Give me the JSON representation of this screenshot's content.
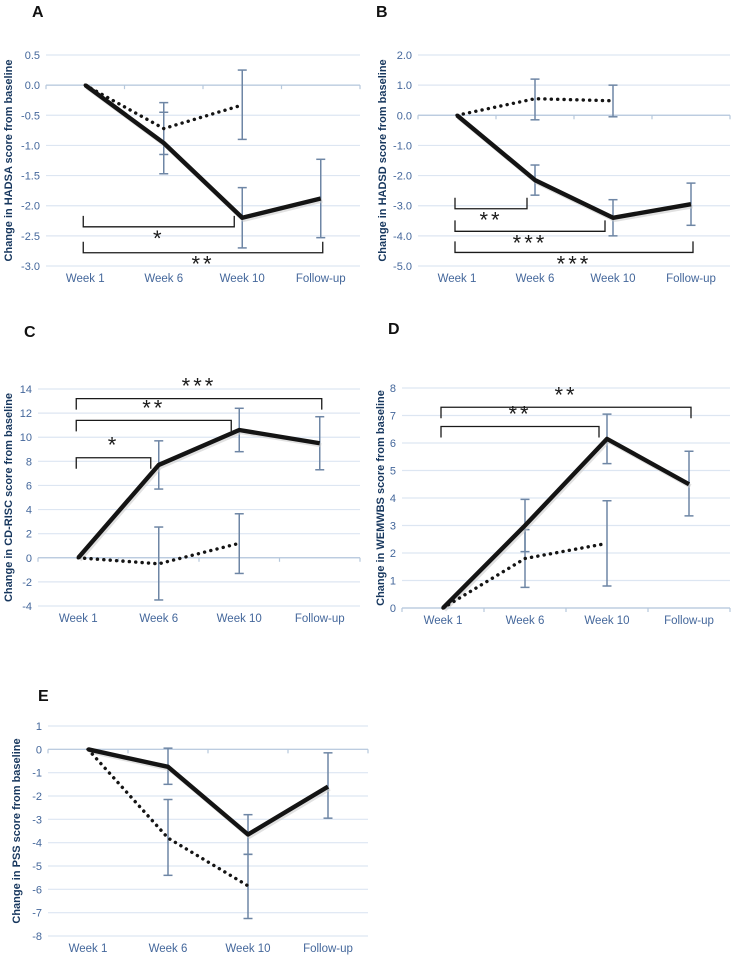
{
  "colors": {
    "line": "#141414",
    "line_shadow": "#c9c9c9",
    "error_bar": "#6e86a5",
    "grid": "#dde6f2",
    "axis": "#b6c8dc",
    "tick_label": "#44679b",
    "axis_title": "#17375e",
    "stars": "#1a1a1a",
    "background": "#ffffff"
  },
  "chart_data": [
    {
      "type": "line",
      "panel_label": "A",
      "ylabel": "Change in HADSA score from baseline",
      "categories": [
        "Week 1",
        "Week 6",
        "Week 10",
        "Follow-up"
      ],
      "ylim": [
        -3.0,
        0.5
      ],
      "grid": true,
      "legend": "none",
      "yticks": {
        "values": [
          0.5,
          0,
          -0.5,
          -1,
          -1.5,
          -2,
          -2.5,
          -3
        ],
        "labels": [
          "0.5",
          "0.0",
          "-0.5",
          "-1.0",
          "-1.5",
          "-2.0",
          "-2.5",
          "-3.0"
        ]
      },
      "series": [
        {
          "name": "solid-line",
          "dash": "solid",
          "values": [
            0,
            -0.96,
            -2.2,
            -1.88
          ],
          "err_hi": [
            null,
            -0.45,
            -1.7,
            -1.23
          ],
          "err_lo": [
            null,
            -1.47,
            -2.7,
            -2.53
          ]
        },
        {
          "name": "dotted-line",
          "dash": "dotted",
          "values": [
            0,
            -0.72,
            -0.33,
            null
          ],
          "err_hi": [
            null,
            -0.29,
            0.25,
            null
          ],
          "err_lo": [
            null,
            -1.15,
            -0.9,
            null
          ]
        }
      ],
      "brackets": [
        {
          "from": 0,
          "to": 2,
          "at": -2.35,
          "stars": "*",
          "side": "bottom"
        },
        {
          "from": 0,
          "to": 3,
          "at": -2.78,
          "stars": "**",
          "side": "bottom"
        }
      ]
    },
    {
      "type": "line",
      "panel_label": "B",
      "ylabel": "Change in HADSD score from baseline",
      "categories": [
        "Week 1",
        "Week 6",
        "Week 10",
        "Follow-up"
      ],
      "ylim": [
        -5.0,
        2.0
      ],
      "grid": true,
      "legend": "none",
      "yticks": {
        "values": [
          2,
          1,
          0,
          -1,
          -2,
          -3,
          -4,
          -5
        ],
        "labels": [
          "2.0",
          "1.0",
          "0.0",
          "-1.0",
          "-2.0",
          "-3.0",
          "-4.0",
          "-5.0"
        ]
      },
      "series": [
        {
          "name": "solid-line",
          "dash": "solid",
          "values": [
            0,
            -2.15,
            -3.4,
            -2.95
          ],
          "err_hi": [
            null,
            -1.65,
            -2.8,
            -2.25
          ],
          "err_lo": [
            null,
            -2.65,
            -4.0,
            -3.65
          ]
        },
        {
          "name": "dotted-line",
          "dash": "dotted",
          "values": [
            0,
            0.55,
            0.48,
            null
          ],
          "err_hi": [
            null,
            1.2,
            1.0,
            null
          ],
          "err_lo": [
            null,
            -0.15,
            -0.05,
            null
          ]
        }
      ],
      "brackets": [
        {
          "from": 0,
          "to": 1,
          "at": -3.1,
          "stars": "**",
          "side": "bottom"
        },
        {
          "from": 0,
          "to": 2,
          "at": -3.85,
          "stars": "***",
          "side": "bottom"
        },
        {
          "from": 0,
          "to": 3,
          "at": -4.55,
          "stars": "***",
          "side": "bottom"
        }
      ]
    },
    {
      "type": "line",
      "panel_label": "C",
      "ylabel": "Change in CD-RISC score from baseline",
      "categories": [
        "Week 1",
        "Week 6",
        "Week 10",
        "Follow-up"
      ],
      "ylim": [
        -4,
        14
      ],
      "grid": true,
      "legend": "none",
      "yticks": {
        "values": [
          14,
          12,
          10,
          8,
          6,
          4,
          2,
          0,
          -2,
          -4
        ],
        "labels": [
          "14",
          "12",
          "10",
          "8",
          "6",
          "4",
          "2",
          "0",
          "-2",
          "-4"
        ]
      },
      "series": [
        {
          "name": "solid-line",
          "dash": "solid",
          "values": [
            0,
            7.7,
            10.6,
            9.5
          ],
          "err_hi": [
            null,
            9.7,
            12.4,
            11.7
          ],
          "err_lo": [
            null,
            5.7,
            8.8,
            7.3
          ]
        },
        {
          "name": "dotted-line",
          "dash": "dotted",
          "values": [
            0,
            -0.5,
            1.2,
            null
          ],
          "err_hi": [
            null,
            2.55,
            3.65,
            null
          ],
          "err_lo": [
            null,
            -3.5,
            -1.3,
            null
          ]
        }
      ],
      "brackets": [
        {
          "from": 0,
          "to": 1,
          "at": 8.3,
          "stars": "*",
          "side": "top"
        },
        {
          "from": 0,
          "to": 2,
          "at": 11.4,
          "stars": "**",
          "side": "top"
        },
        {
          "from": 0,
          "to": 3,
          "at": 13.2,
          "stars": "***",
          "side": "top"
        }
      ]
    },
    {
      "type": "line",
      "panel_label": "D",
      "ylabel": "Change in WEMWBS score from baseline",
      "categories": [
        "Week 1",
        "Week 6",
        "Week 10",
        "Follow-up"
      ],
      "ylim": [
        0,
        8
      ],
      "grid": true,
      "legend": "none",
      "yticks": {
        "values": [
          8,
          7,
          6,
          5,
          4,
          3,
          2,
          1,
          0
        ],
        "labels": [
          "8",
          "7",
          "6",
          "5",
          "4",
          "3",
          "2",
          "1",
          "0"
        ]
      },
      "series": [
        {
          "name": "solid-line",
          "dash": "solid",
          "values": [
            0,
            3.0,
            6.15,
            4.5
          ],
          "err_hi": [
            null,
            3.95,
            7.05,
            5.7
          ],
          "err_lo": [
            null,
            2.05,
            5.25,
            3.35
          ]
        },
        {
          "name": "dotted-line",
          "dash": "dotted",
          "values": [
            0,
            1.8,
            2.35,
            null
          ],
          "err_hi": [
            null,
            2.85,
            3.9,
            null
          ],
          "err_lo": [
            null,
            0.75,
            0.8,
            null
          ]
        }
      ],
      "brackets": [
        {
          "from": 0,
          "to": 2,
          "at": 6.6,
          "stars": "**",
          "side": "top"
        },
        {
          "from": 0,
          "to": 3,
          "at": 7.3,
          "stars": "**",
          "side": "top"
        }
      ]
    },
    {
      "type": "line",
      "panel_label": "E",
      "ylabel": "Change in PSS score from baseline",
      "categories": [
        "Week 1",
        "Week 6",
        "Week 10",
        "Follow-up"
      ],
      "ylim": [
        -8,
        1
      ],
      "grid": true,
      "legend": "none",
      "yticks": {
        "values": [
          1,
          0,
          -1,
          -2,
          -3,
          -4,
          -5,
          -6,
          -7,
          -8
        ],
        "labels": [
          "1",
          "0",
          "-1",
          "-2",
          "-3",
          "-4",
          "-5",
          "-6",
          "-7",
          "-8"
        ]
      },
      "series": [
        {
          "name": "solid-line",
          "dash": "solid",
          "values": [
            0,
            -0.75,
            -3.65,
            -1.6
          ],
          "err_hi": [
            null,
            0.05,
            -2.8,
            -0.15
          ],
          "err_lo": [
            null,
            -1.5,
            -4.5,
            -2.95
          ]
        },
        {
          "name": "dotted-line",
          "dash": "dotted",
          "values": [
            0,
            -3.8,
            -5.85,
            null
          ],
          "err_hi": [
            null,
            -2.15,
            -4.5,
            null
          ],
          "err_lo": [
            null,
            -5.4,
            -7.25,
            null
          ]
        }
      ],
      "brackets": []
    }
  ]
}
